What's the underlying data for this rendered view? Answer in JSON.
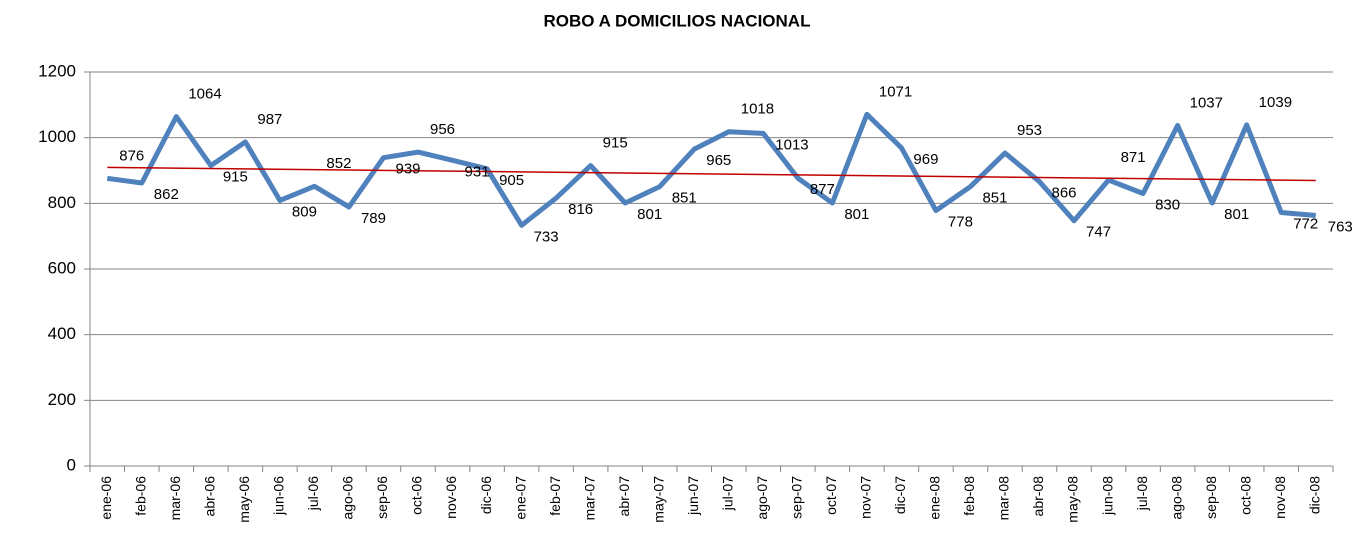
{
  "chart_data": {
    "type": "line",
    "title": "ROBO A DOMICILIOS NACIONAL",
    "categories": [
      "ene-06",
      "feb-06",
      "mar-06",
      "abr-06",
      "may-06",
      "jun-06",
      "jul-06",
      "ago-06",
      "sep-06",
      "oct-06",
      "nov-06",
      "dic-06",
      "ene-07",
      "feb-07",
      "mar-07",
      "abr-07",
      "may-07",
      "jun-07",
      "jul-07",
      "ago-07",
      "sep-07",
      "oct-07",
      "nov-07",
      "dic-07",
      "ene-08",
      "feb-08",
      "mar-08",
      "abr-08",
      "may-08",
      "jun-08",
      "jul-08",
      "ago-08",
      "sep-08",
      "oct-08",
      "nov-08",
      "dic-08"
    ],
    "values": [
      876,
      862,
      1064,
      915,
      987,
      809,
      852,
      789,
      939,
      956,
      931,
      905,
      733,
      816,
      915,
      801,
      851,
      965,
      1018,
      1013,
      877,
      801,
      1071,
      969,
      778,
      851,
      953,
      866,
      747,
      871,
      830,
      1037,
      801,
      1039,
      772,
      763
    ],
    "color": "#4f81bd",
    "trendline": true,
    "trendline_color": "#c00000",
    "ylim": [
      0,
      1200
    ],
    "yticks": [
      0,
      200,
      400,
      600,
      800,
      1000,
      1200
    ],
    "grid": true
  }
}
